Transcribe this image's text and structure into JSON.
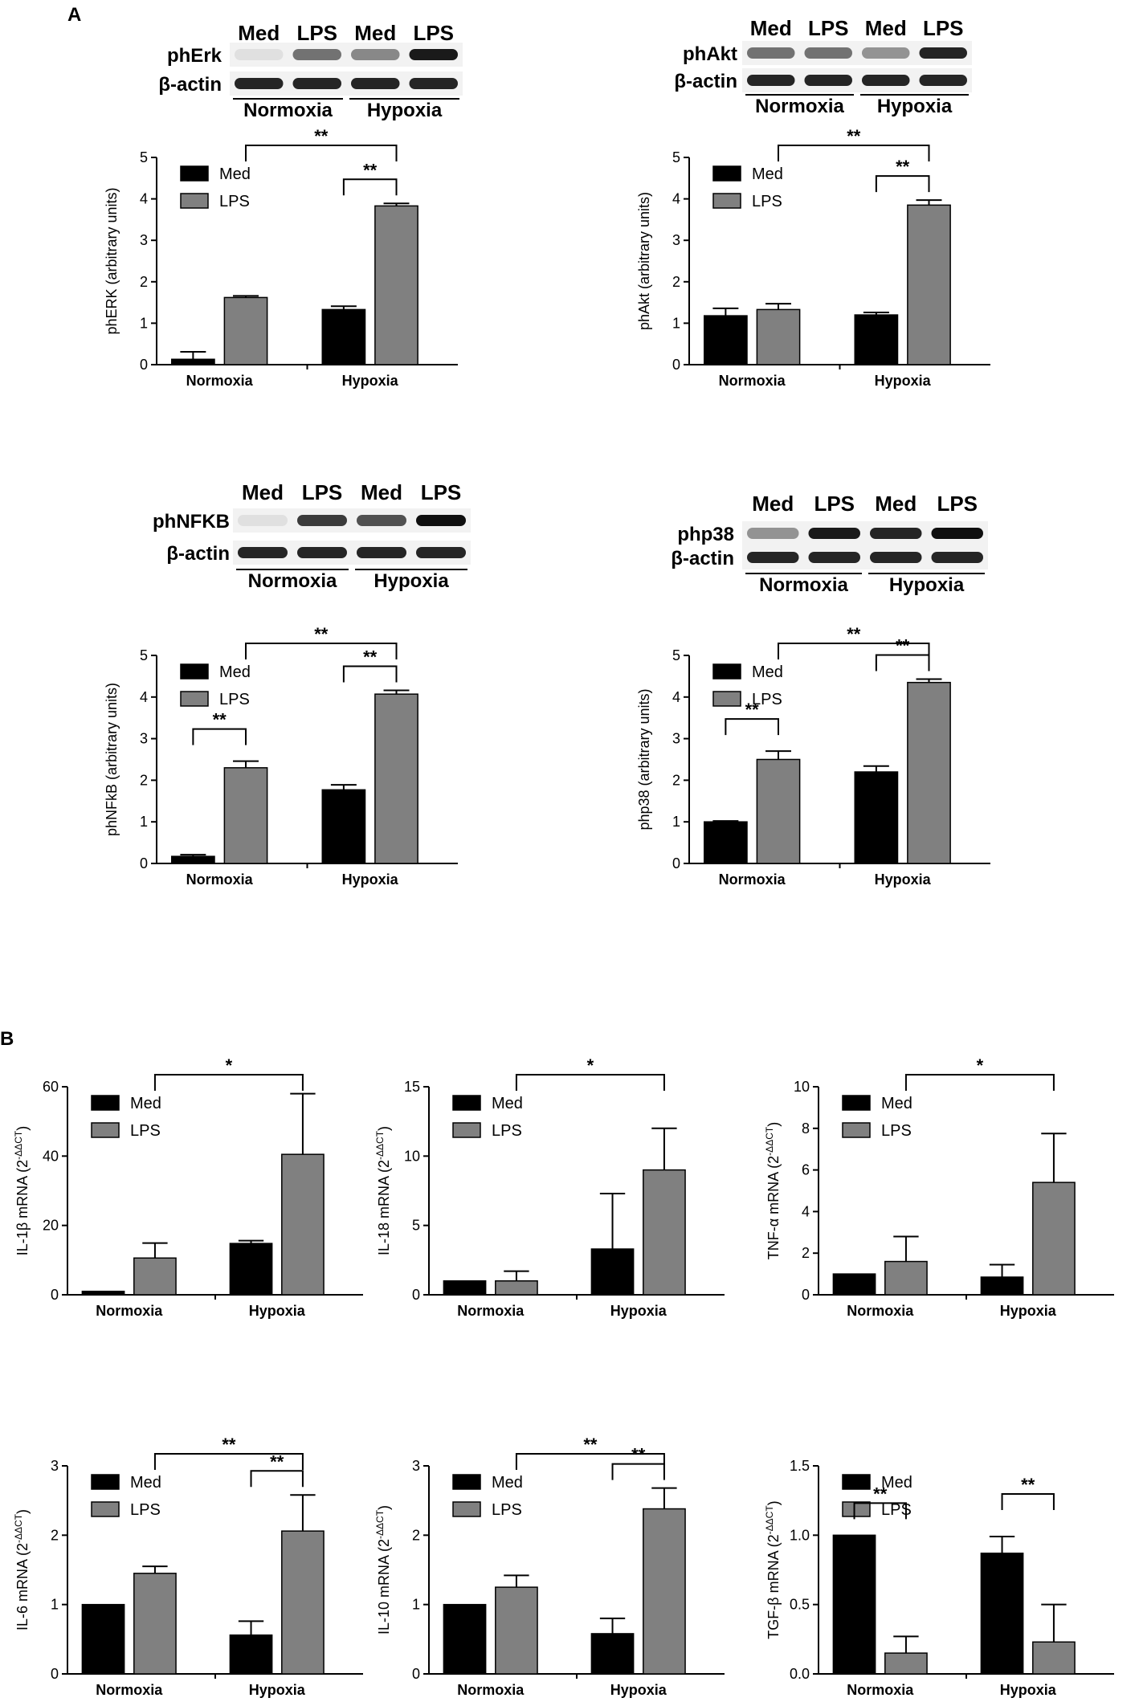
{
  "panel_labels": {
    "a": "A",
    "b": "B"
  },
  "colors": {
    "med": "#000000",
    "lps": "#808080",
    "axis": "#000000"
  },
  "blots": [
    {
      "top_labels": [
        "Med",
        "LPS",
        "Med",
        "LPS"
      ],
      "rows": [
        "phErk",
        "β-actin"
      ],
      "groups": [
        "Normoxia",
        "Hypoxia"
      ],
      "intensity": [
        [
          0.05,
          0.55,
          0.45,
          0.95
        ],
        [
          0.9,
          0.9,
          0.9,
          0.9
        ]
      ]
    },
    {
      "top_labels": [
        "Med",
        "LPS",
        "Med",
        "LPS"
      ],
      "rows": [
        "phAkt",
        "β-actin"
      ],
      "groups": [
        "Normoxia",
        "Hypoxia"
      ],
      "intensity": [
        [
          0.55,
          0.55,
          0.4,
          0.9
        ],
        [
          0.9,
          0.9,
          0.9,
          0.9
        ]
      ]
    },
    {
      "top_labels": [
        "Med",
        "LPS",
        "Med",
        "LPS"
      ],
      "rows": [
        "phNFKB",
        "β-actin"
      ],
      "groups": [
        "Normoxia",
        "Hypoxia"
      ],
      "intensity": [
        [
          0.05,
          0.8,
          0.7,
          1.0
        ],
        [
          0.9,
          0.9,
          0.9,
          0.9
        ]
      ]
    },
    {
      "top_labels": [
        "Med",
        "LPS",
        "Med",
        "LPS"
      ],
      "rows": [
        "php38",
        "β-actin"
      ],
      "groups": [
        "Normoxia",
        "Hypoxia"
      ],
      "intensity": [
        [
          0.4,
          0.95,
          0.9,
          1.0
        ],
        [
          0.9,
          0.9,
          0.9,
          0.9
        ]
      ]
    }
  ],
  "chart_data": [
    {
      "type": "bar",
      "panel": "A",
      "categories": [
        "Normoxia",
        "Hypoxia"
      ],
      "ylabel": "phERK (arbitrary units)",
      "ylim": [
        0,
        5
      ],
      "yticks": [
        0,
        1,
        2,
        3,
        4,
        5
      ],
      "legend_position": "top-left",
      "series": [
        {
          "name": "Med",
          "values": [
            0.13,
            1.33
          ],
          "errors": [
            0.18,
            0.08
          ]
        },
        {
          "name": "LPS",
          "values": [
            1.62,
            3.83
          ],
          "errors": [
            0.04,
            0.06
          ]
        }
      ],
      "significance": [
        {
          "from": "Normoxia-LPS",
          "to": "Hypoxia-LPS",
          "label": "**"
        },
        {
          "from": "Hypoxia-Med",
          "to": "Hypoxia-LPS",
          "label": "**"
        }
      ]
    },
    {
      "type": "bar",
      "panel": "A",
      "categories": [
        "Normoxia",
        "Hypoxia"
      ],
      "ylabel": "phAkt (arbitrary units)",
      "ylim": [
        0,
        5
      ],
      "yticks": [
        0,
        1,
        2,
        3,
        4,
        5
      ],
      "legend_position": "top-left",
      "series": [
        {
          "name": "Med",
          "values": [
            1.18,
            1.2
          ],
          "errors": [
            0.18,
            0.06
          ]
        },
        {
          "name": "LPS",
          "values": [
            1.33,
            3.85
          ],
          "errors": [
            0.14,
            0.12
          ]
        }
      ],
      "significance": [
        {
          "from": "Normoxia-LPS",
          "to": "Hypoxia-LPS",
          "label": "**"
        },
        {
          "from": "Hypoxia-Med",
          "to": "Hypoxia-LPS",
          "label": "**"
        }
      ]
    },
    {
      "type": "bar",
      "panel": "A",
      "categories": [
        "Normoxia",
        "Hypoxia"
      ],
      "ylabel": "phNFkB (arbitrary units)",
      "ylim": [
        0,
        5
      ],
      "yticks": [
        0,
        1,
        2,
        3,
        4,
        5
      ],
      "legend_position": "top-left",
      "series": [
        {
          "name": "Med",
          "values": [
            0.17,
            1.77
          ],
          "errors": [
            0.04,
            0.12
          ]
        },
        {
          "name": "LPS",
          "values": [
            2.3,
            4.07
          ],
          "errors": [
            0.16,
            0.09
          ]
        }
      ],
      "significance": [
        {
          "from": "Normoxia-LPS",
          "to": "Hypoxia-LPS",
          "label": "**"
        },
        {
          "from": "Hypoxia-Med",
          "to": "Hypoxia-LPS",
          "label": "**"
        },
        {
          "from": "Normoxia-Med",
          "to": "Normoxia-LPS",
          "label": "**"
        }
      ]
    },
    {
      "type": "bar",
      "panel": "A",
      "categories": [
        "Normoxia",
        "Hypoxia"
      ],
      "ylabel": "php38 (arbitrary units)",
      "ylim": [
        0,
        5
      ],
      "yticks": [
        0,
        1,
        2,
        3,
        4,
        5
      ],
      "legend_position": "top-left",
      "series": [
        {
          "name": "Med",
          "values": [
            1.0,
            2.2
          ],
          "errors": [
            0.02,
            0.14
          ]
        },
        {
          "name": "LPS",
          "values": [
            2.5,
            4.35
          ],
          "errors": [
            0.2,
            0.08
          ]
        }
      ],
      "significance": [
        {
          "from": "Normoxia-LPS",
          "to": "Hypoxia-LPS",
          "label": "**"
        },
        {
          "from": "Hypoxia-Med",
          "to": "Hypoxia-LPS",
          "label": "**"
        },
        {
          "from": "Normoxia-Med",
          "to": "Normoxia-LPS",
          "label": "**"
        }
      ]
    },
    {
      "type": "bar",
      "panel": "B",
      "categories": [
        "Normoxia",
        "Hypoxia"
      ],
      "ylabel": "IL-1β mRNA (2",
      "ylabel_sup": "-ΔΔCT",
      "ylabel_end": ")",
      "ylim": [
        0,
        60
      ],
      "yticks": [
        0,
        20,
        40,
        60
      ],
      "legend_position": "top-left",
      "series": [
        {
          "name": "Med",
          "values": [
            1.0,
            14.8
          ],
          "errors": [
            0,
            0.8
          ]
        },
        {
          "name": "LPS",
          "values": [
            10.6,
            40.5
          ],
          "errors": [
            4.3,
            17.5
          ]
        }
      ],
      "significance": [
        {
          "from": "Normoxia-LPS",
          "to": "Hypoxia-LPS",
          "label": "*"
        }
      ]
    },
    {
      "type": "bar",
      "panel": "B",
      "categories": [
        "Normoxia",
        "Hypoxia"
      ],
      "ylabel": "IL-18 mRNA (2",
      "ylabel_sup": "-ΔΔCT",
      "ylabel_end": ")",
      "ylim": [
        0,
        15
      ],
      "yticks": [
        0,
        5,
        10,
        15
      ],
      "legend_position": "top-left",
      "series": [
        {
          "name": "Med",
          "values": [
            1.0,
            3.3
          ],
          "errors": [
            0,
            4.0
          ]
        },
        {
          "name": "LPS",
          "values": [
            1.0,
            9.0
          ],
          "errors": [
            0.7,
            3.0
          ]
        }
      ],
      "significance": [
        {
          "from": "Normoxia-LPS",
          "to": "Hypoxia-LPS",
          "label": "*"
        }
      ]
    },
    {
      "type": "bar",
      "panel": "B",
      "categories": [
        "Normoxia",
        "Hypoxia"
      ],
      "ylabel": "TNF-α mRNA (2",
      "ylabel_sup": "-ΔΔCT",
      "ylabel_end": ")",
      "ylim": [
        0,
        10
      ],
      "yticks": [
        0,
        2,
        4,
        6,
        8,
        10
      ],
      "legend_position": "top-left",
      "series": [
        {
          "name": "Med",
          "values": [
            1.0,
            0.85
          ],
          "errors": [
            0,
            0.6
          ]
        },
        {
          "name": "LPS",
          "values": [
            1.6,
            5.4
          ],
          "errors": [
            1.2,
            2.35
          ]
        }
      ],
      "significance": [
        {
          "from": "Normoxia-LPS",
          "to": "Hypoxia-LPS",
          "label": "*"
        }
      ]
    },
    {
      "type": "bar",
      "panel": "B",
      "categories": [
        "Normoxia",
        "Hypoxia"
      ],
      "ylabel": "IL-6 mRNA (2",
      "ylabel_sup": "-ΔΔCT",
      "ylabel_end": ")",
      "ylim": [
        0,
        3
      ],
      "yticks": [
        0,
        1,
        2,
        3
      ],
      "legend_position": "top-left",
      "series": [
        {
          "name": "Med",
          "values": [
            1.0,
            0.56
          ],
          "errors": [
            0,
            0.2
          ]
        },
        {
          "name": "LPS",
          "values": [
            1.45,
            2.06
          ],
          "errors": [
            0.1,
            0.52
          ]
        }
      ],
      "significance": [
        {
          "from": "Normoxia-LPS",
          "to": "Hypoxia-LPS",
          "label": "**"
        },
        {
          "from": "Hypoxia-Med",
          "to": "Hypoxia-LPS",
          "label": "**"
        }
      ]
    },
    {
      "type": "bar",
      "panel": "B",
      "categories": [
        "Normoxia",
        "Hypoxia"
      ],
      "ylabel": "IL-10 mRNA (2",
      "ylabel_sup": "-ΔΔCT",
      "ylabel_end": ")",
      "ylim": [
        0,
        3
      ],
      "yticks": [
        0,
        1,
        2,
        3
      ],
      "legend_position": "top-left",
      "series": [
        {
          "name": "Med",
          "values": [
            1.0,
            0.58
          ],
          "errors": [
            0,
            0.22
          ]
        },
        {
          "name": "LPS",
          "values": [
            1.25,
            2.38
          ],
          "errors": [
            0.17,
            0.3
          ]
        }
      ],
      "significance": [
        {
          "from": "Normoxia-LPS",
          "to": "Hypoxia-LPS",
          "label": "**"
        },
        {
          "from": "Hypoxia-Med",
          "to": "Hypoxia-LPS",
          "label": "**"
        }
      ]
    },
    {
      "type": "bar",
      "panel": "B",
      "categories": [
        "Normoxia",
        "Hypoxia"
      ],
      "ylabel": "TGF-β mRNA (2",
      "ylabel_sup": "-ΔΔCT",
      "ylabel_end": ")",
      "ylim": [
        0,
        1.5
      ],
      "yticks": [
        "0.0",
        "0.5",
        "1.0",
        "1.5"
      ],
      "legend_position": "top-left",
      "series": [
        {
          "name": "Med",
          "values": [
            1.0,
            0.87
          ],
          "errors": [
            0,
            0.12
          ]
        },
        {
          "name": "LPS",
          "values": [
            0.15,
            0.23
          ],
          "errors": [
            0.12,
            0.27
          ]
        }
      ],
      "significance": [
        {
          "from": "Normoxia-Med",
          "to": "Normoxia-LPS",
          "label": "**"
        },
        {
          "from": "Hypoxia-Med",
          "to": "Hypoxia-LPS",
          "label": "**"
        }
      ]
    }
  ]
}
